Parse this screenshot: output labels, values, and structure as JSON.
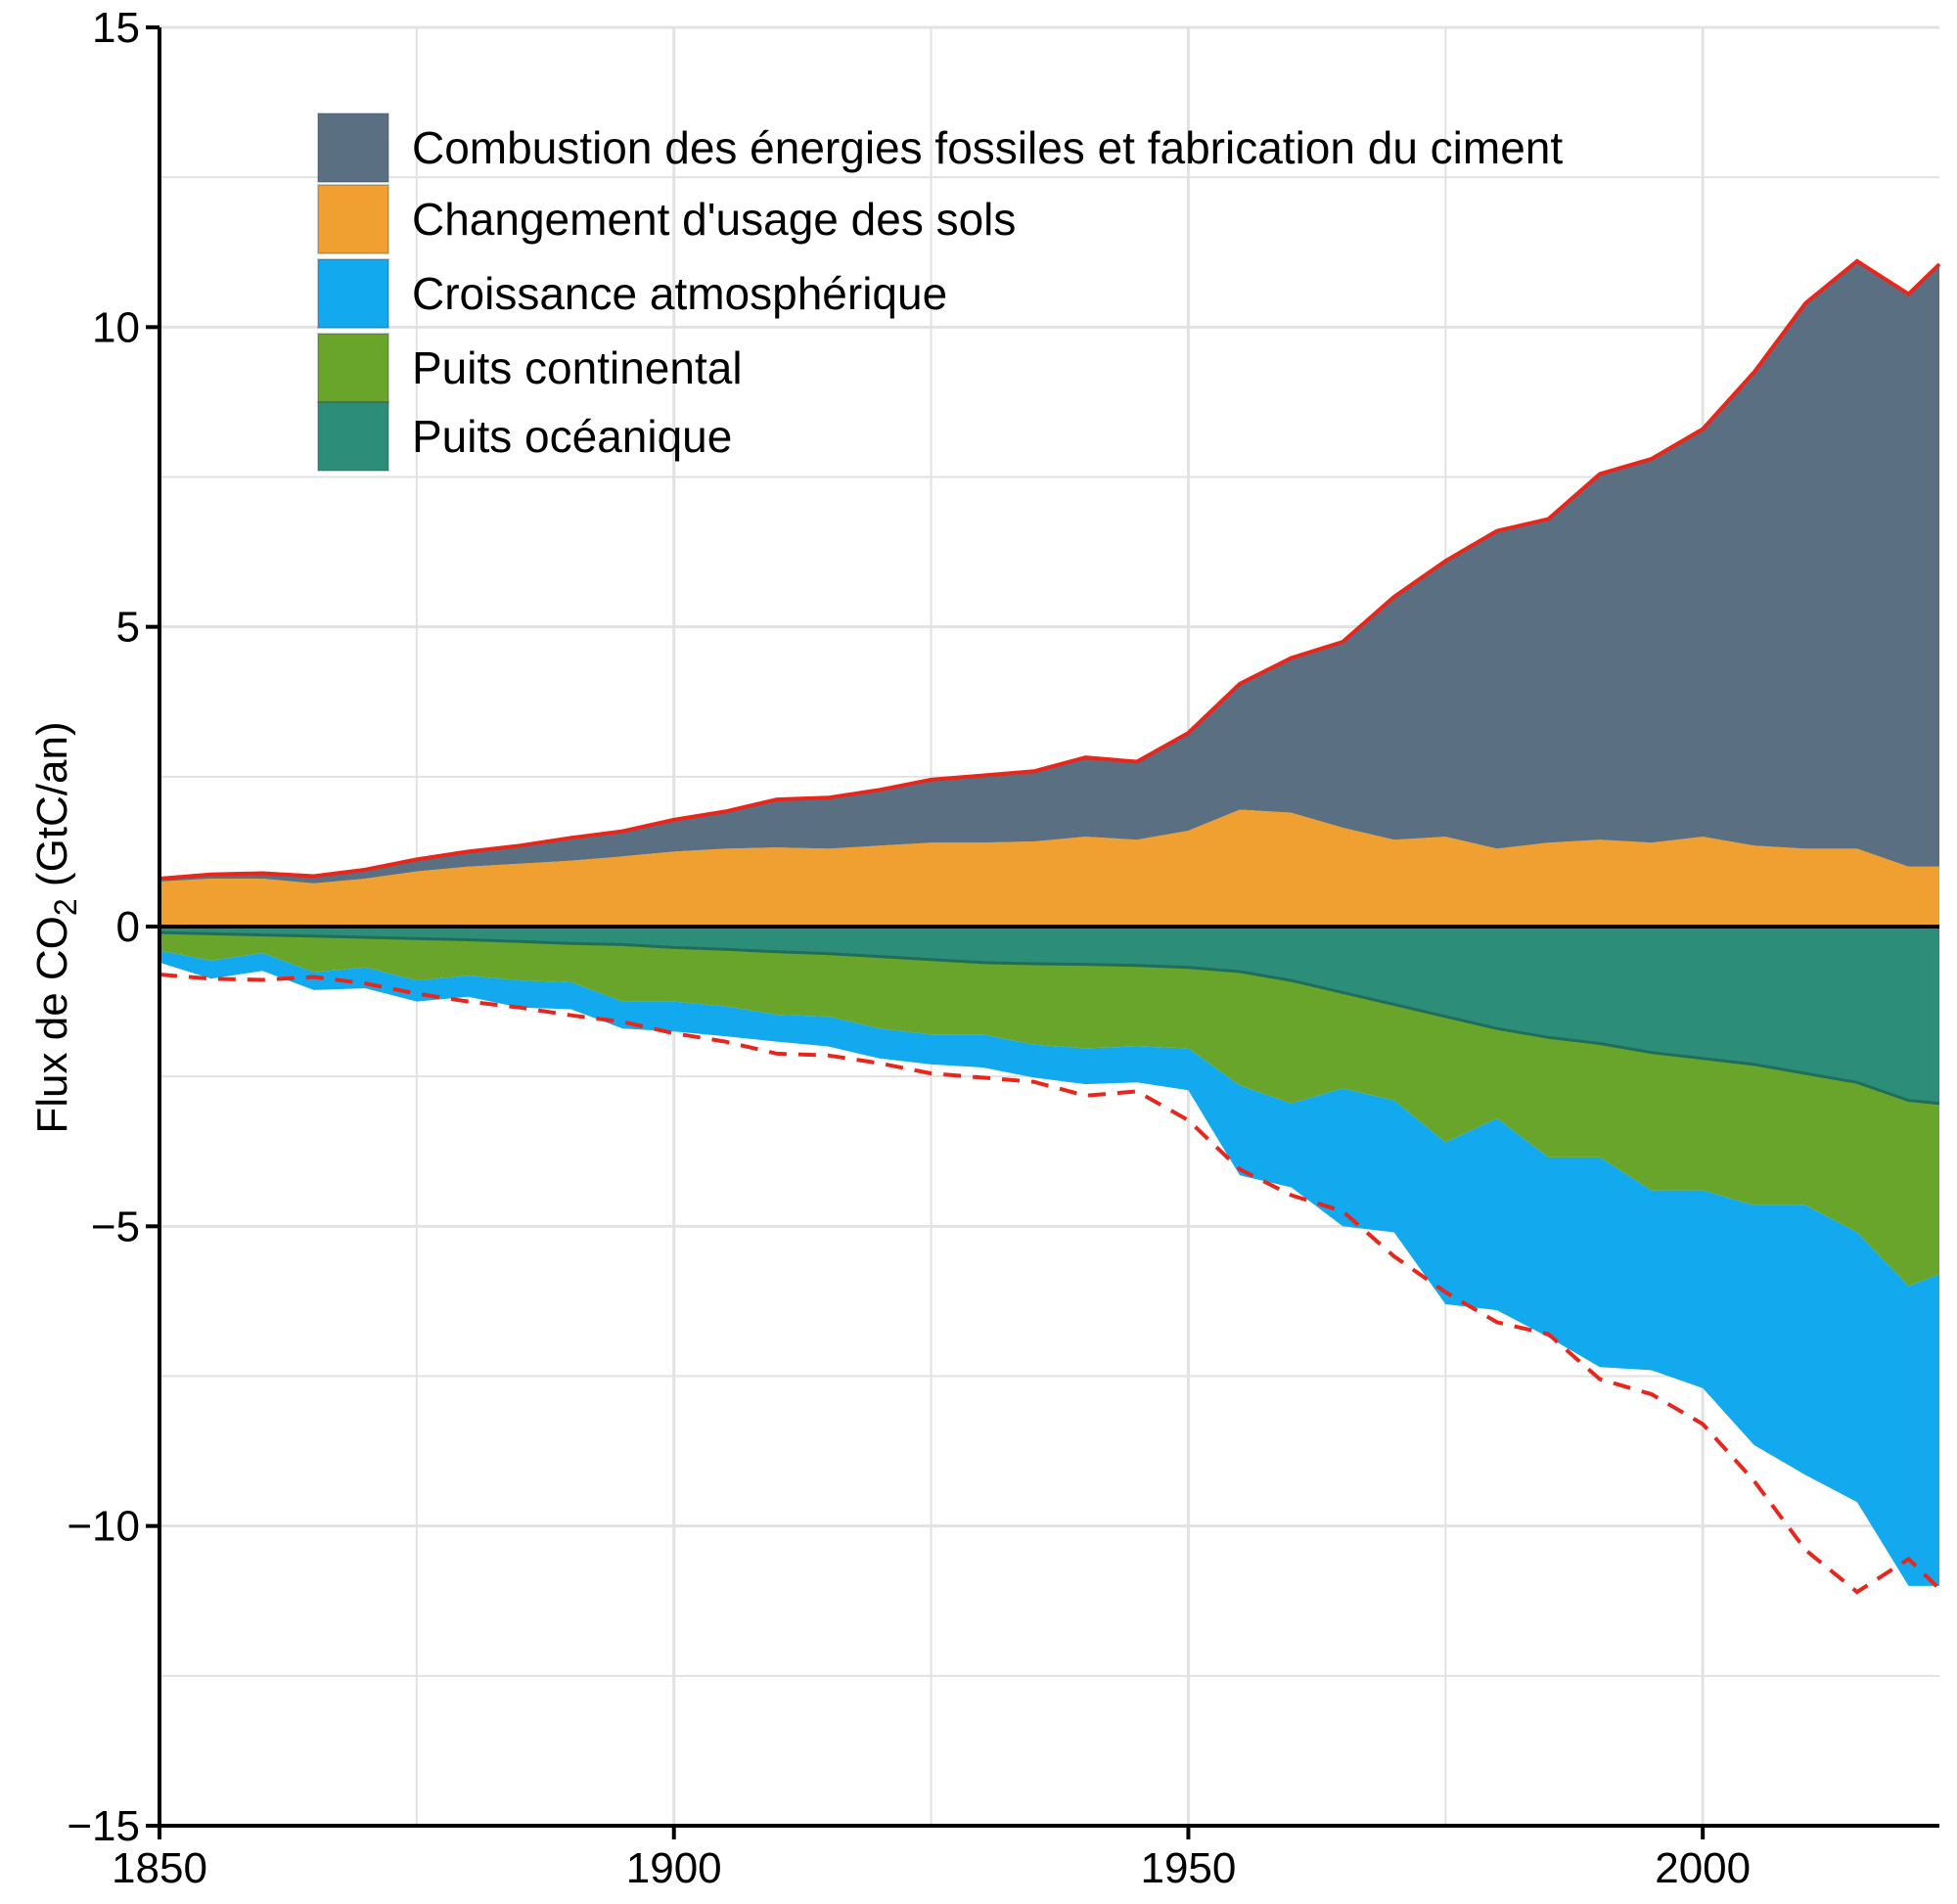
{
  "chart_data": {
    "type": "area",
    "ylabel": "Flux de CO",
    "ylabel_sub": "2",
    "ylabel_unit": " (GtC/an)",
    "xlim": [
      1850,
      2023
    ],
    "ylim": [
      -15,
      15
    ],
    "grid": true,
    "legend_position": "top-left",
    "x_ticks": [
      1850,
      1900,
      1950,
      2000
    ],
    "x_tick_labels": [
      "1850",
      "1900",
      "1950",
      "2000"
    ],
    "y_ticks": [
      15,
      10,
      5,
      0,
      -5,
      -10,
      -15
    ],
    "y_tick_labels": [
      "15",
      "10",
      "5",
      "0",
      "−5",
      "−10",
      "−15"
    ],
    "colors": {
      "fossil": "#5a7082",
      "land_use": "#f0a031",
      "atmosphere": "#12a9ef",
      "land_sink": "#68a52a",
      "ocean_sink": "#2c8e78",
      "total_line": "#e8261c"
    },
    "x": [
      1850,
      1855,
      1860,
      1865,
      1870,
      1875,
      1880,
      1885,
      1890,
      1895,
      1900,
      1905,
      1910,
      1915,
      1920,
      1925,
      1930,
      1935,
      1940,
      1945,
      1950,
      1955,
      1960,
      1965,
      1970,
      1975,
      1980,
      1985,
      1990,
      1995,
      2000,
      2005,
      2010,
      2015,
      2020,
      2023
    ],
    "series": [
      {
        "name": "Combustion des énergies fossiles et fabrication du ciment",
        "key": "fossil",
        "values": [
          0.05,
          0.07,
          0.09,
          0.12,
          0.15,
          0.2,
          0.25,
          0.3,
          0.38,
          0.42,
          0.53,
          0.62,
          0.8,
          0.85,
          0.93,
          1.05,
          1.12,
          1.17,
          1.32,
          1.3,
          1.63,
          2.1,
          2.58,
          3.1,
          4.05,
          4.6,
          5.3,
          5.4,
          6.1,
          6.4,
          6.8,
          7.9,
          9.1,
          9.8,
          9.55,
          10.05
        ]
      },
      {
        "name": "Changement d'usage des sols",
        "key": "land_use",
        "values": [
          0.75,
          0.8,
          0.8,
          0.72,
          0.8,
          0.92,
          1.0,
          1.05,
          1.1,
          1.17,
          1.25,
          1.3,
          1.32,
          1.3,
          1.35,
          1.4,
          1.4,
          1.42,
          1.5,
          1.45,
          1.6,
          1.95,
          1.9,
          1.65,
          1.45,
          1.5,
          1.3,
          1.4,
          1.45,
          1.4,
          1.5,
          1.35,
          1.3,
          1.3,
          1.0,
          1.0
        ]
      },
      {
        "name": "Croissance atmosphérique",
        "key": "atmosphere",
        "values": [
          -0.2,
          -0.3,
          -0.3,
          -0.3,
          -0.35,
          -0.35,
          -0.35,
          -0.45,
          -0.45,
          -0.45,
          -0.5,
          -0.5,
          -0.45,
          -0.5,
          -0.5,
          -0.5,
          -0.55,
          -0.55,
          -0.6,
          -0.6,
          -0.7,
          -1.5,
          -1.4,
          -2.3,
          -2.2,
          -2.7,
          -3.2,
          -3.0,
          -3.5,
          -3.0,
          -3.3,
          -4.0,
          -4.5,
          -4.5,
          -5.0,
          -5.2
        ]
      },
      {
        "name": "Puits continental",
        "key": "land_sink",
        "values": [
          -0.3,
          -0.45,
          -0.3,
          -0.6,
          -0.5,
          -0.7,
          -0.6,
          -0.65,
          -0.65,
          -0.95,
          -0.9,
          -0.95,
          -1.05,
          -1.05,
          -1.2,
          -1.25,
          -1.2,
          -1.35,
          -1.4,
          -1.35,
          -1.35,
          -1.9,
          -2.05,
          -1.6,
          -1.6,
          -2.1,
          -1.5,
          -2.0,
          -1.9,
          -2.3,
          -2.2,
          -2.35,
          -2.2,
          -2.5,
          -3.1,
          -2.85
        ]
      },
      {
        "name": "Puits océanique",
        "key": "ocean_sink",
        "values": [
          -0.1,
          -0.12,
          -0.14,
          -0.16,
          -0.18,
          -0.2,
          -0.22,
          -0.25,
          -0.28,
          -0.3,
          -0.35,
          -0.38,
          -0.42,
          -0.45,
          -0.5,
          -0.55,
          -0.6,
          -0.62,
          -0.63,
          -0.65,
          -0.68,
          -0.75,
          -0.9,
          -1.1,
          -1.3,
          -1.5,
          -1.7,
          -1.85,
          -1.95,
          -2.1,
          -2.2,
          -2.3,
          -2.45,
          -2.6,
          -2.9,
          -2.95
        ]
      }
    ]
  }
}
